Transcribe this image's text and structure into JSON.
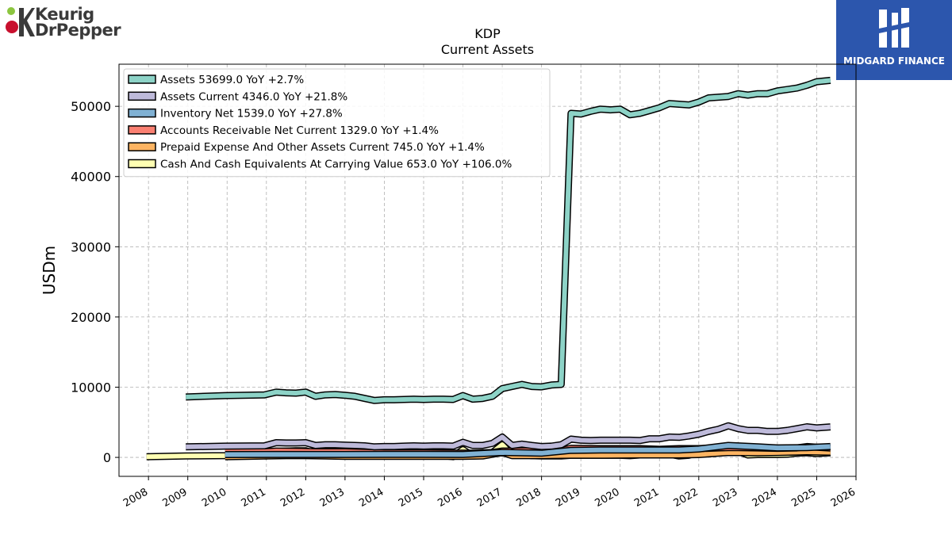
{
  "header": {
    "left_logo_line1": "Keurig",
    "left_logo_line2": "DrPepper",
    "right_logo_text": "MIDGARD FINANCE"
  },
  "chart_data": {
    "type": "area",
    "title": "KDP",
    "subtitle": "Current  Assets",
    "ylabel": "USDm",
    "xlim": [
      2007.25,
      2026.0
    ],
    "ylim": [
      -2700,
      56000
    ],
    "yticks": [
      0,
      10000,
      20000,
      30000,
      40000,
      50000
    ],
    "xticks": [
      2008,
      2009,
      2010,
      2011,
      2012,
      2013,
      2014,
      2015,
      2016,
      2017,
      2018,
      2019,
      2020,
      2021,
      2022,
      2023,
      2024,
      2025,
      2026
    ],
    "grid": true,
    "legend_position": "top-left",
    "series": [
      {
        "name": "Assets",
        "legend": "Assets  53699.0 YoY +2.7%",
        "color": "#8dd3c7",
        "x": [
          2008.95,
          2009.95,
          2010.95,
          2011.25,
          2011.5,
          2011.75,
          2012.0,
          2012.25,
          2012.5,
          2012.75,
          2013.0,
          2013.25,
          2013.5,
          2013.75,
          2014.0,
          2014.25,
          2014.5,
          2014.75,
          2015.0,
          2015.25,
          2015.5,
          2015.75,
          2016.0,
          2016.25,
          2016.5,
          2016.75,
          2017.0,
          2017.25,
          2017.5,
          2017.75,
          2018.0,
          2018.25,
          2018.5,
          2018.75,
          2019.0,
          2019.25,
          2019.5,
          2019.75,
          2020.0,
          2020.25,
          2020.5,
          2020.75,
          2021.0,
          2021.25,
          2021.5,
          2021.75,
          2022.0,
          2022.25,
          2022.5,
          2022.75,
          2023.0,
          2023.25,
          2023.5,
          2023.75,
          2024.0,
          2024.25,
          2024.5,
          2024.75,
          2025.0,
          2025.35
        ],
        "y": [
          8600,
          8800,
          8900,
          9300,
          9200,
          9150,
          9300,
          8700,
          8900,
          8950,
          8850,
          8700,
          8400,
          8100,
          8200,
          8200,
          8250,
          8300,
          8250,
          8300,
          8300,
          8250,
          8800,
          8300,
          8400,
          8700,
          9800,
          10100,
          10400,
          10100,
          10050,
          10300,
          10400,
          49000,
          48900,
          49300,
          49600,
          49500,
          49600,
          48800,
          49000,
          49400,
          49800,
          50400,
          50300,
          50200,
          50600,
          51200,
          51300,
          51400,
          51800,
          51600,
          51800,
          51800,
          52200,
          52400,
          52600,
          53000,
          53500,
          53699
        ]
      },
      {
        "name": "Assets Current",
        "legend": "Assets Current  4346.0 YoY +21.8%",
        "color": "#bebada",
        "x": [
          2008.95,
          2009.95,
          2010.95,
          2011.25,
          2011.5,
          2011.75,
          2012.0,
          2012.25,
          2012.5,
          2012.75,
          2013.0,
          2013.25,
          2013.5,
          2013.75,
          2014.0,
          2014.25,
          2014.5,
          2014.75,
          2015.0,
          2015.25,
          2015.5,
          2015.75,
          2016.0,
          2016.25,
          2016.5,
          2016.75,
          2017.0,
          2017.25,
          2017.5,
          2017.75,
          2018.0,
          2018.25,
          2018.5,
          2018.75,
          2019.0,
          2019.25,
          2019.5,
          2019.75,
          2020.0,
          2020.25,
          2020.5,
          2020.75,
          2021.0,
          2021.25,
          2021.5,
          2021.75,
          2022.0,
          2022.25,
          2022.5,
          2022.75,
          2023.0,
          2023.25,
          2023.5,
          2023.75,
          2024.0,
          2024.25,
          2024.5,
          2024.75,
          2025.0,
          2025.35
        ],
        "y": [
          1500,
          1600,
          1650,
          2100,
          2050,
          2050,
          2100,
          1700,
          1800,
          1800,
          1750,
          1700,
          1650,
          1500,
          1550,
          1550,
          1600,
          1650,
          1600,
          1650,
          1650,
          1600,
          2150,
          1700,
          1700,
          2000,
          2900,
          1700,
          1900,
          1700,
          1550,
          1600,
          1800,
          2600,
          2450,
          2400,
          2450,
          2450,
          2450,
          2450,
          2400,
          2650,
          2650,
          2900,
          2850,
          3050,
          3300,
          3700,
          4000,
          4500,
          4100,
          3850,
          3850,
          3700,
          3700,
          3850,
          4100,
          4350,
          4200,
          4346
        ]
      },
      {
        "name": "Inventory Net",
        "legend": "Inventory Net  1539.0 YoY +27.8%",
        "color": "#80b1d3",
        "x": [
          2009.95,
          2011.0,
          2012.0,
          2013.0,
          2014.0,
          2015.0,
          2016.0,
          2017.0,
          2018.0,
          2018.75,
          2019.5,
          2020.5,
          2021.5,
          2022.0,
          2022.75,
          2023.5,
          2024.0,
          2024.75,
          2025.35
        ],
        "y": [
          400,
          420,
          420,
          420,
          430,
          430,
          420,
          700,
          600,
          1000,
          1050,
          1050,
          1050,
          1200,
          1700,
          1500,
          1350,
          1400,
          1539
        ]
      },
      {
        "name": "Accounts Receivable Net Current",
        "legend": "Accounts Receivable Net Current  1329.0 YoY +1.4%",
        "color": "#fb8072",
        "x": [
          2009.95,
          2010.95,
          2011.25,
          2012.0,
          2012.25,
          2013.0,
          2014.0,
          2015.0,
          2016.0,
          2016.25,
          2016.75,
          2017.0,
          2017.5,
          2018.0,
          2018.5,
          2018.75,
          2019.5,
          2020.0,
          2020.5,
          2021.0,
          2021.5,
          2022.0,
          2022.5,
          2022.75,
          2023.0,
          2023.5,
          2024.0,
          2024.5,
          2024.75,
          2025.0,
          2025.35
        ],
        "y": [
          800,
          800,
          900,
          850,
          800,
          800,
          650,
          650,
          600,
          600,
          700,
          900,
          950,
          950,
          1000,
          1300,
          1250,
          1250,
          1250,
          1150,
          1250,
          1250,
          1350,
          1400,
          1400,
          1350,
          1300,
          1350,
          1550,
          1450,
          1329
        ]
      },
      {
        "name": "Prepaid Expense And Other Assets Current",
        "legend": "Prepaid Expense And Other Assets Current  745.0 YoY +1.4%",
        "color": "#fdb462",
        "x": [
          2009.95,
          2010.5,
          2011.0,
          2011.5,
          2012.0,
          2012.5,
          2013.0,
          2014.0,
          2015.0,
          2016.0,
          2016.5,
          2017.0,
          2017.25,
          2018.0,
          2018.75,
          2019.5,
          2020.5,
          2021.5,
          2022.0,
          2022.75,
          2023.5,
          2024.0,
          2024.75,
          2025.35
        ],
        "y": [
          100,
          150,
          200,
          250,
          250,
          200,
          150,
          150,
          150,
          150,
          200,
          700,
          250,
          250,
          300,
          300,
          350,
          350,
          400,
          700,
          650,
          700,
          800,
          745
        ]
      },
      {
        "name": "Cash And Cash Equivalents At Carrying Value",
        "legend": "Cash And Cash Equivalents At Carrying Value  653.0 YoY +106.0%",
        "color": "#ffffb3",
        "x": [
          2007.95,
          2008.95,
          2009.95,
          2010.25,
          2010.5,
          2010.75,
          2011.0,
          2011.25,
          2011.75,
          2012.0,
          2012.25,
          2012.5,
          2012.75,
          2013.0,
          2013.25,
          2013.5,
          2013.75,
          2014.0,
          2014.5,
          2015.0,
          2015.5,
          2015.75,
          2016.0,
          2016.25,
          2016.5,
          2016.75,
          2017.0,
          2017.25,
          2017.5,
          2017.75,
          2018.0,
          2018.5,
          2018.75,
          2019.0,
          2019.5,
          2020.0,
          2020.25,
          2020.5,
          2021.0,
          2021.25,
          2021.5,
          2021.75,
          2022.0,
          2022.25,
          2022.5,
          2022.75,
          2023.0,
          2023.25,
          2023.5,
          2024.0,
          2024.25,
          2024.5,
          2024.75,
          2025.0,
          2025.35
        ],
        "y": [
          100,
          200,
          250,
          650,
          450,
          350,
          200,
          850,
          950,
          950,
          500,
          650,
          600,
          500,
          300,
          200,
          200,
          200,
          200,
          250,
          250,
          100,
          1100,
          200,
          250,
          700,
          1800,
          300,
          450,
          250,
          200,
          200,
          300,
          300,
          300,
          300,
          250,
          350,
          400,
          450,
          200,
          300,
          750,
          800,
          800,
          1250,
          850,
          350,
          400,
          400,
          450,
          600,
          650,
          550,
          653
        ]
      }
    ]
  }
}
